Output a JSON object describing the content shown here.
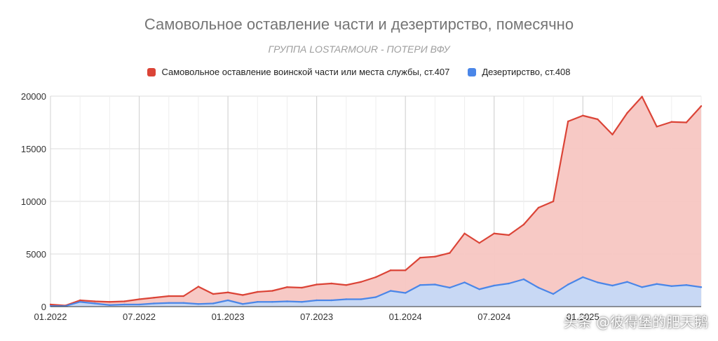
{
  "page": {
    "watermark": "头条 @彼得堡的肥天鹅"
  },
  "chart_data": {
    "type": "area",
    "title": "Самовольное оставление части и дезертирство, помесячно",
    "subtitle": "ГРУППА LOSTARMOUR - ПОТЕРИ ВФУ",
    "xlabel": "",
    "ylabel": "",
    "ylim": [
      0,
      20000
    ],
    "yticks": [
      0,
      5000,
      10000,
      15000,
      20000
    ],
    "x_tick_labels": [
      "01.2022",
      "07.2022",
      "01.2023",
      "07.2023",
      "01.2024",
      "07.2024",
      "01.2025"
    ],
    "x": [
      "2022-01",
      "2022-02",
      "2022-03",
      "2022-04",
      "2022-05",
      "2022-06",
      "2022-07",
      "2022-08",
      "2022-09",
      "2022-10",
      "2022-11",
      "2022-12",
      "2023-01",
      "2023-02",
      "2023-03",
      "2023-04",
      "2023-05",
      "2023-06",
      "2023-07",
      "2023-08",
      "2023-09",
      "2023-10",
      "2023-11",
      "2023-12",
      "2024-01",
      "2024-02",
      "2024-03",
      "2024-04",
      "2024-05",
      "2024-06",
      "2024-07",
      "2024-08",
      "2024-09",
      "2024-10",
      "2024-11",
      "2024-12",
      "2025-01",
      "2025-02",
      "2025-03",
      "2025-04",
      "2025-05",
      "2025-06",
      "2025-07",
      "2025-08",
      "2025-09"
    ],
    "legend_position": "top",
    "grid": true,
    "colors": {
      "series1_line": "#db4437",
      "series1_fill": "#f7c6c2",
      "series2_line": "#4a86e8",
      "series2_fill": "#c5d9f7",
      "grid": "#dddddd"
    },
    "series": [
      {
        "name": "Самовольное оставление воинской части или места службы, ст.407",
        "values": [
          200,
          100,
          600,
          500,
          450,
          500,
          700,
          850,
          1000,
          1000,
          1900,
          1200,
          1350,
          1100,
          1400,
          1500,
          1850,
          1800,
          2100,
          2200,
          2050,
          2350,
          2800,
          3450,
          3450,
          4650,
          4750,
          5100,
          6950,
          6050,
          6950,
          6800,
          7800,
          9400,
          10000,
          17600,
          18150,
          17800,
          16350,
          18400,
          19950,
          17100,
          17550,
          17500,
          19050
        ]
      },
      {
        "name": "Дезертирство, ст.408",
        "values": [
          50,
          50,
          450,
          300,
          150,
          200,
          200,
          300,
          350,
          350,
          250,
          300,
          600,
          250,
          450,
          450,
          500,
          450,
          600,
          600,
          700,
          700,
          900,
          1500,
          1300,
          2050,
          2100,
          1800,
          2300,
          1650,
          2000,
          2200,
          2600,
          1800,
          1200,
          2100,
          2800,
          2300,
          2000,
          2350,
          1850,
          2150,
          1950,
          2050,
          1850
        ]
      }
    ]
  }
}
